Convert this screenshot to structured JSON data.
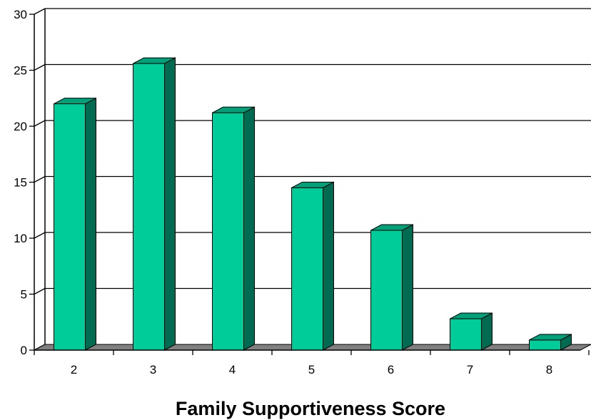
{
  "chart_data": {
    "type": "bar",
    "title": "",
    "xlabel": "Family Supportiveness Score",
    "ylabel": "",
    "categories": [
      "2",
      "3",
      "4",
      "5",
      "6",
      "7",
      "8"
    ],
    "values": [
      22,
      25.6,
      21.2,
      14.5,
      10.7,
      2.8,
      0.9
    ],
    "ylim": [
      0,
      30
    ],
    "yticks": [
      0,
      5,
      10,
      15,
      20,
      25,
      30
    ],
    "ytick_labels": [
      "0",
      "5",
      "10",
      "15",
      "20",
      "25",
      "30"
    ],
    "grid": true,
    "legend": "none",
    "style": "3d-bar"
  },
  "colors": {
    "bar_front": "#00CC99",
    "bar_top": "#00A078",
    "bar_side": "#006B50",
    "floor": "#808080",
    "grid": "#000000"
  }
}
